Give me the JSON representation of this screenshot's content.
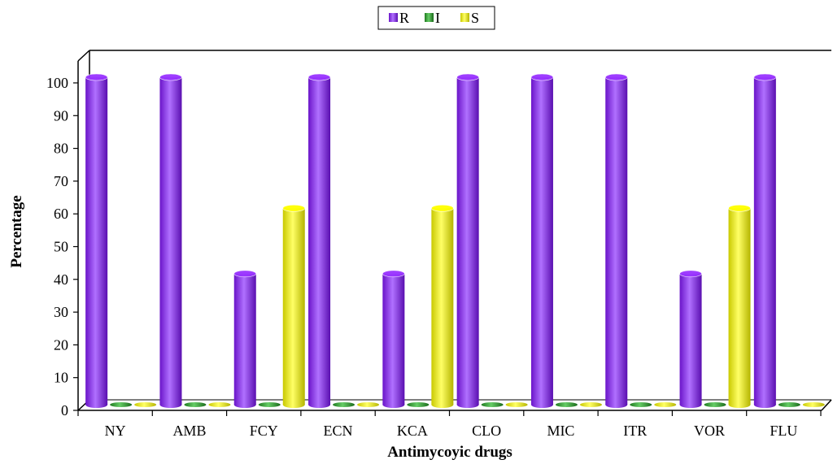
{
  "chart_data": {
    "type": "bar",
    "style": "3d-cylinder",
    "categories": [
      "NY",
      "AMB",
      "FCY",
      "ECN",
      "KCA",
      "CLO",
      "MIC",
      "ITR",
      "VOR",
      "FLU"
    ],
    "series": [
      {
        "name": "R",
        "color": "#9933ff",
        "values": [
          100,
          100,
          40,
          100,
          40,
          100,
          100,
          100,
          40,
          100
        ]
      },
      {
        "name": "I",
        "color": "#33aa33",
        "values": [
          0,
          0,
          0,
          0,
          0,
          0,
          0,
          0,
          0,
          0
        ]
      },
      {
        "name": "S",
        "color": "#ffff00",
        "values": [
          0,
          0,
          60,
          0,
          60,
          0,
          0,
          0,
          60,
          0
        ]
      }
    ],
    "xlabel": "Antimycoyic drugs",
    "ylabel": "Percentage",
    "ylim": [
      0,
      100
    ],
    "yticks": [
      0,
      10,
      20,
      30,
      40,
      50,
      60,
      70,
      80,
      90,
      100
    ],
    "grid": false,
    "legend_position": "top-center"
  }
}
